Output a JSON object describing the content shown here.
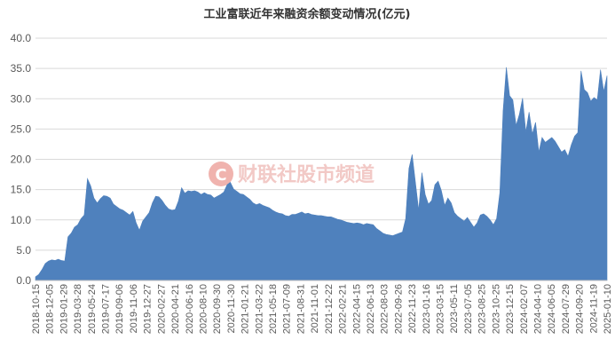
{
  "chart_data": {
    "type": "area",
    "title": "工业富联近年来融资余额变动情况(亿元)",
    "xlabel": "",
    "ylabel": "",
    "ylim": [
      0,
      40
    ],
    "y_ticks": [
      "0.0",
      "5.0",
      "10.0",
      "15.0",
      "20.0",
      "25.0",
      "30.0",
      "35.0",
      "40.0"
    ],
    "x_ticks": [
      "2018-10-15",
      "2018-12-05",
      "2019-01-29",
      "2019-03-28",
      "2019-05-24",
      "2019-07-17",
      "2019-09-06",
      "2019-11-06",
      "2019-12-27",
      "2020-02-27",
      "2020-04-21",
      "2020-06-16",
      "2020-08-10",
      "2020-09-30",
      "2020-11-30",
      "2021-01-21",
      "2021-03-22",
      "2021-05-18",
      "2021-07-09",
      "2021-08-31",
      "2021-11-01",
      "2021-12-22",
      "2022-02-21",
      "2022-04-15",
      "2022-06-13",
      "2022-08-03",
      "2022-09-26",
      "2022-11-23",
      "2023-01-16",
      "2023-03-15",
      "2023-05-11",
      "2023-07-05",
      "2023-08-25",
      "2023-10-25",
      "2023-12-15",
      "2024-02-07",
      "2024-04-10",
      "2024-06-05",
      "2024-07-29",
      "2024-09-20",
      "2024-11-19",
      "2025-01-10"
    ],
    "color": "#4f81bd",
    "grid": true,
    "series": [
      {
        "values": [
          0.6,
          1.0,
          1.8,
          2.8,
          3.2,
          3.4,
          3.3,
          3.5,
          3.3,
          3.2,
          7.2,
          7.8,
          8.8,
          9.2,
          10.2,
          10.8,
          16.8,
          15.6,
          13.6,
          12.8,
          13.5,
          14.0,
          13.9,
          13.6,
          12.6,
          12.2,
          11.8,
          11.6,
          11.2,
          10.8,
          11.4,
          9.5,
          8.3,
          9.8,
          10.5,
          11.2,
          12.8,
          13.9,
          13.8,
          13.2,
          12.4,
          11.8,
          11.6,
          11.7,
          13.1,
          15.3,
          14.4,
          14.8,
          14.7,
          14.8,
          14.6,
          14.2,
          14.5,
          14.2,
          14.1,
          13.6,
          13.9,
          14.2,
          14.6,
          15.8,
          16.2,
          15.1,
          14.7,
          14.3,
          14.2,
          13.8,
          13.4,
          12.8,
          12.5,
          12.7,
          12.4,
          12.2,
          12.0,
          11.6,
          11.3,
          11.1,
          11.0,
          10.7,
          10.6,
          10.9,
          10.9,
          11.1,
          11.3,
          11.0,
          11.1,
          10.9,
          10.8,
          10.7,
          10.7,
          10.6,
          10.5,
          10.5,
          10.3,
          10.1,
          10.0,
          9.8,
          9.6,
          9.5,
          9.4,
          9.5,
          9.4,
          9.2,
          9.4,
          9.3,
          9.2,
          8.6,
          8.2,
          7.8,
          7.6,
          7.5,
          7.4,
          7.6,
          7.8,
          8.0,
          10.2,
          18.5,
          20.8,
          16.2,
          11.6,
          17.8,
          14.2,
          12.6,
          13.2,
          15.8,
          16.4,
          14.8,
          12.4,
          13.6,
          12.8,
          11.2,
          10.6,
          10.2,
          9.8,
          10.4,
          9.6,
          8.8,
          9.5,
          10.8,
          11.0,
          10.6,
          10.0,
          9.2,
          10.2,
          14.5,
          28.0,
          35.2,
          30.5,
          29.8,
          25.6,
          27.4,
          30.1,
          24.5,
          27.8,
          24.2,
          26.1,
          21.2,
          23.6,
          22.8,
          23.2,
          23.6,
          23.0,
          22.1,
          21.2,
          21.6,
          20.5,
          22.4,
          23.8,
          24.4,
          34.6,
          31.5,
          31.0,
          29.6,
          30.2,
          29.8,
          34.8,
          31.2,
          33.8
        ]
      }
    ]
  },
  "watermark": {
    "logo_letter": "C",
    "text": "财联社股市频道",
    "logo_color": "#f0b3ae"
  }
}
